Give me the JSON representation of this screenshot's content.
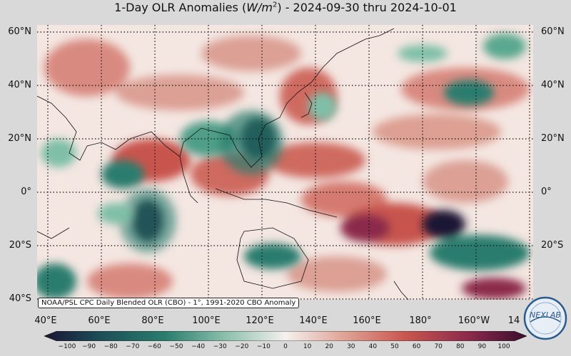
{
  "map": {
    "title_main": "1-Day OLR Anomalies (",
    "title_unit": "W/m",
    "title_sup": "2",
    "title_rest": ") - 2024-09-30 thru 2024-10-01",
    "lat_labels": [
      "60°N",
      "40°N",
      "20°N",
      "0°",
      "20°S",
      "40°S"
    ],
    "lon_labels": [
      "40°E",
      "60°E",
      "80°E",
      "100°E",
      "120°E",
      "140°E",
      "160°E",
      "180°",
      "160°W",
      "14"
    ],
    "credit": "NOAA/PSL CPC Daily Blended OLR (CBO) - 1°, 1991-2020 CBO Anomaly",
    "colorbar_ticks": [
      "−100",
      "−90",
      "−80",
      "−70",
      "−60",
      "−50",
      "−40",
      "−30",
      "−20",
      "−10",
      "0",
      "10",
      "20",
      "30",
      "40",
      "50",
      "60",
      "70",
      "80",
      "90",
      "100"
    ],
    "colorbar_range": [
      -100,
      100
    ],
    "logo_text": "NEXLAB",
    "colors": {
      "negative_extreme": "#1a1535",
      "negative": "#2a7d6e",
      "neutral": "#f5f0ee",
      "positive": "#c8554e",
      "positive_extreme": "#3a0d2c"
    },
    "extent": {
      "lon_min": 40,
      "lon_max": 225,
      "lat_min": -40,
      "lat_max": 64
    }
  }
}
